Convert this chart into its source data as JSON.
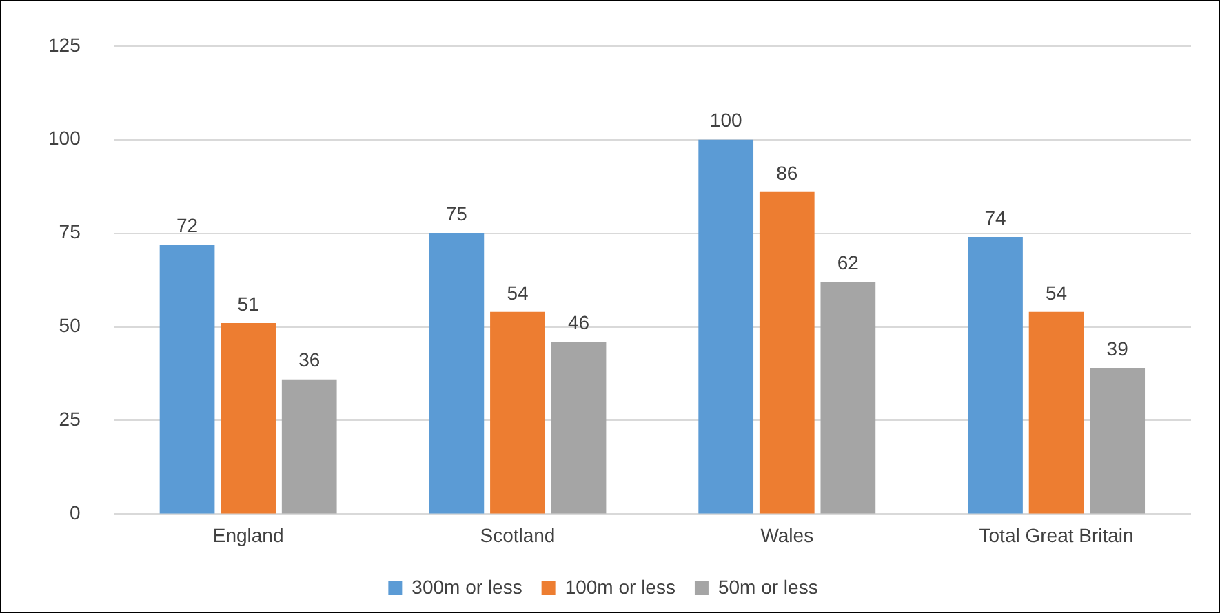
{
  "chart_data": {
    "type": "bar",
    "categories": [
      "England",
      "Scotland",
      "Wales",
      "Total Great Britain"
    ],
    "series": [
      {
        "name": "300m or less",
        "color": "#5b9bd5",
        "values": [
          72,
          75,
          100,
          74
        ]
      },
      {
        "name": "100m or less",
        "color": "#ed7d31",
        "values": [
          51,
          54,
          86,
          54
        ]
      },
      {
        "name": "50m or less",
        "color": "#a5a5a5",
        "values": [
          36,
          46,
          62,
          39
        ]
      }
    ],
    "ylim": [
      0,
      125
    ],
    "yticks": [
      0,
      25,
      50,
      75,
      100,
      125
    ],
    "grid": "y",
    "legend": "bottom",
    "data_labels": true
  }
}
